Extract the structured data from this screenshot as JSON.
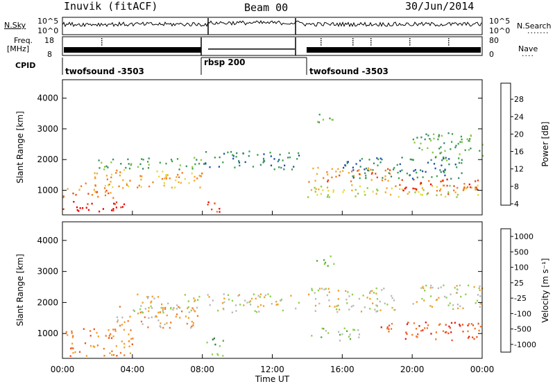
{
  "header": {
    "station": "Inuvik (fitACF)",
    "beam": "Beam 00",
    "date": "30/Jun/2014"
  },
  "strip": {
    "nsky_label": "N.Sky",
    "nsky_ticks": [
      "10^5",
      "10^0"
    ],
    "nsearch_label": "N.Search",
    "nsearch_ticks": [
      "10^5",
      "10^0"
    ],
    "freq_label": "Freq.",
    "freq_unit": "[MHz]",
    "freq_ticks": [
      "18",
      "8"
    ],
    "nave_label": "Nave",
    "nave_ticks": [
      "80",
      "0"
    ],
    "cpid_label": "CPID",
    "cpid_segments": [
      {
        "label": "twofsound -3503"
      },
      {
        "label": "rbsp 200"
      },
      {
        "label": "twofsound -3503"
      }
    ]
  },
  "colors": {
    "power": [
      "#0000ff",
      "#1f4fa8",
      "#3a8a6a",
      "#39a34a",
      "#8ac83a",
      "#e6d838",
      "#f5a623",
      "#f07a18",
      "#e84414",
      "#ee0000"
    ],
    "velocity": [
      "#1034c8",
      "#1f5ad6",
      "#2f7d3c",
      "#5aa83c",
      "#8cd04a",
      "#b8b8b8",
      "#f0a028",
      "#f07828",
      "#ee5020",
      "#e81818"
    ]
  },
  "chart_data": [
    {
      "type": "heatmap",
      "name": "power",
      "ylabel": "Slant Range [km]",
      "y_ticks": [
        1000,
        2000,
        3000,
        4000
      ],
      "ylim": [
        200,
        4600
      ],
      "x_ticks": [
        "00:00",
        "04:00",
        "08:00",
        "12:00",
        "16:00",
        "20:00",
        "00:00"
      ],
      "xlim_hours": [
        0,
        24
      ],
      "colorbar_label": "Power [dB]",
      "colorbar_ticks": [
        "28",
        "24",
        "20",
        "16",
        "12",
        "8",
        "4"
      ],
      "bands": [
        {
          "t0": 0,
          "t1": 3.5,
          "r0": 300,
          "r1": 700,
          "level": 9
        },
        {
          "t0": 0,
          "t1": 3,
          "r0": 700,
          "r1": 1100,
          "level": 7
        },
        {
          "t0": 1,
          "t1": 8,
          "r0": 1100,
          "r1": 1700,
          "level": 6
        },
        {
          "t0": 2,
          "t1": 8,
          "r0": 1700,
          "r1": 2100,
          "level": 3
        },
        {
          "t0": 8,
          "t1": 13.5,
          "r0": 1700,
          "r1": 2300,
          "level": 2
        },
        {
          "t0": 8.2,
          "t1": 9,
          "r0": 300,
          "r1": 800,
          "level": 8
        },
        {
          "t0": 14,
          "t1": 19,
          "r0": 1300,
          "r1": 1800,
          "level": 7
        },
        {
          "t0": 14,
          "t1": 24,
          "r0": 800,
          "r1": 1200,
          "level": 5
        },
        {
          "t0": 19,
          "t1": 24,
          "r0": 900,
          "r1": 1400,
          "level": 8
        },
        {
          "t0": 16,
          "t1": 23,
          "r0": 1400,
          "r1": 2100,
          "level": 2
        },
        {
          "t0": 20,
          "t1": 24,
          "r0": 2000,
          "r1": 2900,
          "level": 3
        },
        {
          "t0": 14.5,
          "t1": 15.5,
          "r0": 3200,
          "r1": 3600,
          "level": 3
        }
      ]
    },
    {
      "type": "heatmap",
      "name": "velocity",
      "ylabel": "Slant Range [km]",
      "y_ticks": [
        1000,
        2000,
        3000,
        4000
      ],
      "ylim": [
        200,
        4600
      ],
      "x_ticks": [
        "00:00",
        "04:00",
        "08:00",
        "12:00",
        "16:00",
        "20:00",
        "00:00"
      ],
      "xlabel": "Time UT",
      "xlim_hours": [
        0,
        24
      ],
      "colorbar_label": "Velocity [m s⁻¹]",
      "colorbar_ticks": [
        "1000",
        "500",
        "100",
        "25",
        "-25",
        "-100",
        "-500",
        "-1000"
      ],
      "bands": [
        {
          "t0": 0,
          "t1": 4,
          "r0": 300,
          "r1": 1200,
          "level": 7
        },
        {
          "t0": 3,
          "t1": 8,
          "r0": 1200,
          "r1": 1900,
          "level": 6
        },
        {
          "t0": 4,
          "t1": 13.5,
          "r0": 1700,
          "r1": 2300,
          "level": 5
        },
        {
          "t0": 8.2,
          "t1": 9.2,
          "r0": 300,
          "r1": 900,
          "level": 3
        },
        {
          "t0": 14,
          "t1": 19,
          "r0": 1700,
          "r1": 2500,
          "level": 5
        },
        {
          "t0": 14,
          "t1": 17,
          "r0": 800,
          "r1": 1200,
          "level": 4
        },
        {
          "t0": 18,
          "t1": 24,
          "r0": 800,
          "r1": 1400,
          "level": 8
        },
        {
          "t0": 20,
          "t1": 24,
          "r0": 1800,
          "r1": 2600,
          "level": 5
        },
        {
          "t0": 14.5,
          "t1": 15.5,
          "r0": 3200,
          "r1": 3600,
          "level": 4
        }
      ]
    }
  ]
}
